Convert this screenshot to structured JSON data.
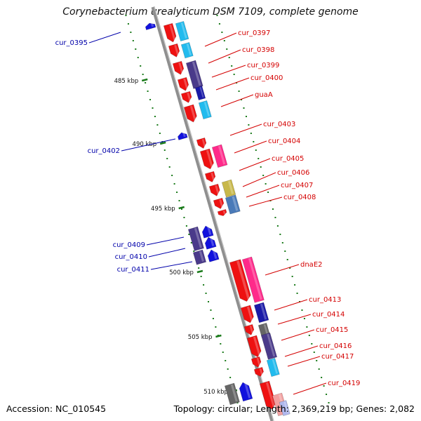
{
  "title": "Corynebacterium urealyticum DSM 7109, complete genome",
  "footer": {
    "accession": "Accession: NC_010545",
    "summary": "Topology: circular; Length: 2,369,219 bp; Genes: 2,082"
  },
  "colors": {
    "backbone": "#8f8f8f",
    "label_red": "#d40000",
    "label_blue": "#0000aa",
    "tick_green": "#1a7a1a"
  },
  "ticks": [
    "485 kbp",
    "490 kbp",
    "495 kbp",
    "500 kbp",
    "505 kbp",
    "510 kbp"
  ],
  "genes_right": [
    "cur_0397",
    "cur_0398",
    "cur_0399",
    "cur_0400",
    "guaA",
    "cur_0403",
    "cur_0404",
    "cur_0405",
    "cur_0406",
    "cur_0407",
    "cur_0408",
    "dnaE2",
    "cur_0413",
    "cur_0414",
    "cur_0415",
    "cur_0416",
    "cur_0417",
    "cur_0419"
  ],
  "genes_left": [
    "cur_0395",
    "cur_0402",
    "cur_0409",
    "cur_0410",
    "cur_0411"
  ]
}
